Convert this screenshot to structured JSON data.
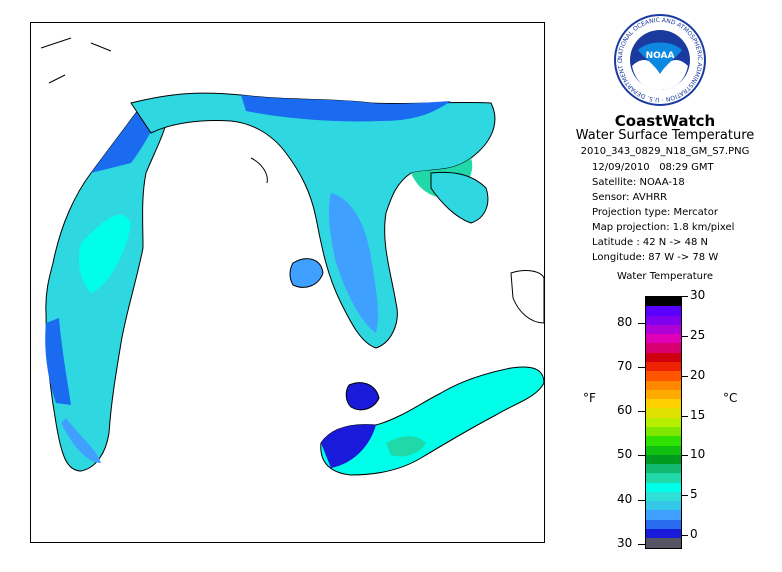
{
  "header": {
    "logo_text": "NOAA",
    "logo_ring_text": "NATIONAL OCEANIC AND ATMOSPHERIC ADMINISTRATION · U.S. DEPARTMENT OF COMMERCE",
    "brand": "CoastWatch",
    "product": "Water Surface Temperature",
    "filename": "2010_343_0829_N18_GM_S7.PNG"
  },
  "metadata": {
    "date": "12/09/2010",
    "time": "08:29 GMT",
    "satellite": "Satellite: NOAA-18",
    "sensor": "Sensor: AVHRR",
    "projection_type": "Projection type:  Mercator",
    "map_projection": "Map projection: 1.8 km/pixel",
    "latitude": "Latitude : 42 N -> 48 N",
    "longitude": "Longitude: 87 W -> 78 W"
  },
  "legend": {
    "title": "Water Temperature",
    "unit_f": "°F",
    "unit_c": "°C",
    "fahrenheit_ticks": [
      {
        "label": "80",
        "value": 80
      },
      {
        "label": "70",
        "value": 70
      },
      {
        "label": "60",
        "value": 60
      },
      {
        "label": "50",
        "value": 50
      },
      {
        "label": "40",
        "value": 40
      },
      {
        "label": "30",
        "value": 30
      }
    ],
    "celsius_ticks": [
      {
        "label": "30",
        "value": 30
      },
      {
        "label": "25",
        "value": 25
      },
      {
        "label": "20",
        "value": 20
      },
      {
        "label": "15",
        "value": 15
      },
      {
        "label": "10",
        "value": 10
      },
      {
        "label": "5",
        "value": 5
      },
      {
        "label": "0",
        "value": 0
      }
    ],
    "c_range": [
      -1.5,
      30
    ],
    "colors": [
      "#555566",
      "#1a1adb",
      "#2a6cf0",
      "#3fa0ff",
      "#35c8e8",
      "#2ee0d8",
      "#00ffe8",
      "#20d8a8",
      "#10b870",
      "#009a20",
      "#10c010",
      "#30e000",
      "#80e800",
      "#b8ee00",
      "#e0e000",
      "#ffd000",
      "#ffaa00",
      "#ff8800",
      "#ff5500",
      "#ee2200",
      "#d00010",
      "#d80070",
      "#e000b8",
      "#b000d8",
      "#8000ee",
      "#5a00ff",
      "#000000"
    ]
  },
  "map": {
    "land_color": "#ffffff",
    "coast_color": "#000000"
  }
}
